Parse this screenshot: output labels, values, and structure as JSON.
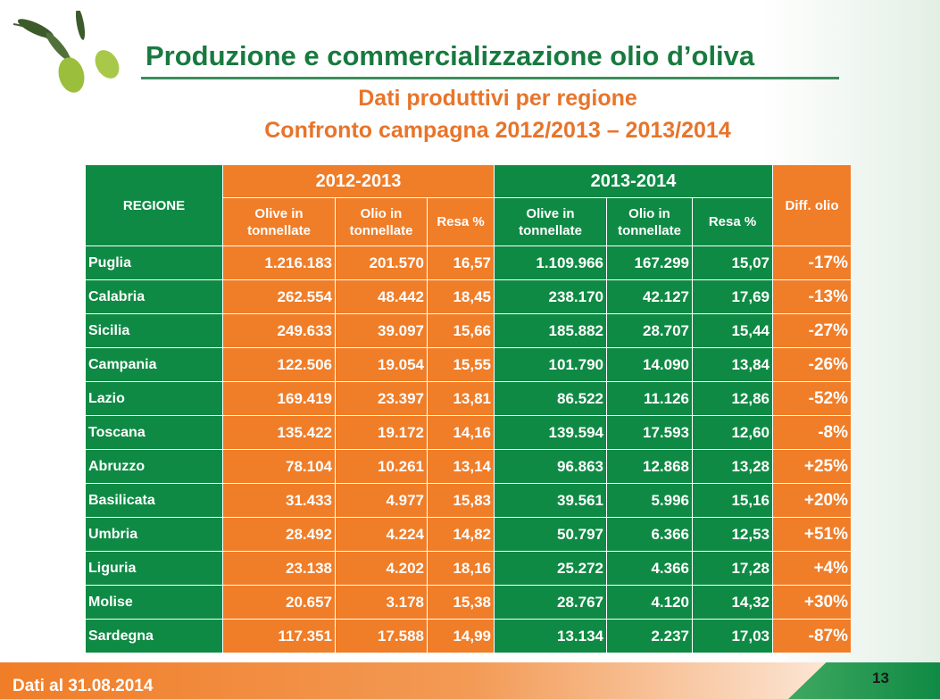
{
  "title": "Produzione e commercializzazione olio d’oliva",
  "subtitle1": "Dati produttivi per regione",
  "subtitle2": "Confronto campagna 2012/2013 – 2013/2014",
  "table": {
    "region_header": "REGIONE",
    "year1": "2012-2013",
    "year2": "2013-2014",
    "diff_header": "Diff. olio",
    "sub_headers": [
      "Olive in tonnellate",
      "Olio in tonnellate",
      "Resa %",
      "Olive in tonnellate",
      "Olio in tonnellate",
      "Resa %"
    ],
    "rows": [
      [
        "Puglia",
        "1.216.183",
        "201.570",
        "16,57",
        "1.109.966",
        "167.299",
        "15,07",
        "-17%"
      ],
      [
        "Calabria",
        "262.554",
        "48.442",
        "18,45",
        "238.170",
        "42.127",
        "17,69",
        "-13%"
      ],
      [
        "Sicilia",
        "249.633",
        "39.097",
        "15,66",
        "185.882",
        "28.707",
        "15,44",
        "-27%"
      ],
      [
        "Campania",
        "122.506",
        "19.054",
        "15,55",
        "101.790",
        "14.090",
        "13,84",
        "-26%"
      ],
      [
        "Lazio",
        "169.419",
        "23.397",
        "13,81",
        "86.522",
        "11.126",
        "12,86",
        "-52%"
      ],
      [
        "Toscana",
        "135.422",
        "19.172",
        "14,16",
        "139.594",
        "17.593",
        "12,60",
        "-8%"
      ],
      [
        "Abruzzo",
        "78.104",
        "10.261",
        "13,14",
        "96.863",
        "12.868",
        "13,28",
        "+25%"
      ],
      [
        "Basilicata",
        "31.433",
        "4.977",
        "15,83",
        "39.561",
        "5.996",
        "15,16",
        "+20%"
      ],
      [
        "Umbria",
        "28.492",
        "4.224",
        "14,82",
        "50.797",
        "6.366",
        "12,53",
        "+51%"
      ],
      [
        "Liguria",
        "23.138",
        "4.202",
        "18,16",
        "25.272",
        "4.366",
        "17,28",
        "+4%"
      ],
      [
        "Molise",
        "20.657",
        "3.178",
        "15,38",
        "28.767",
        "4.120",
        "14,32",
        "+30%"
      ],
      [
        "Sardegna",
        "117.351",
        "17.588",
        "14,99",
        "13.134",
        "2.237",
        "17,03",
        "-87%"
      ]
    ]
  },
  "footer": {
    "date": "Dati al 31.08.2014",
    "page": "13"
  }
}
